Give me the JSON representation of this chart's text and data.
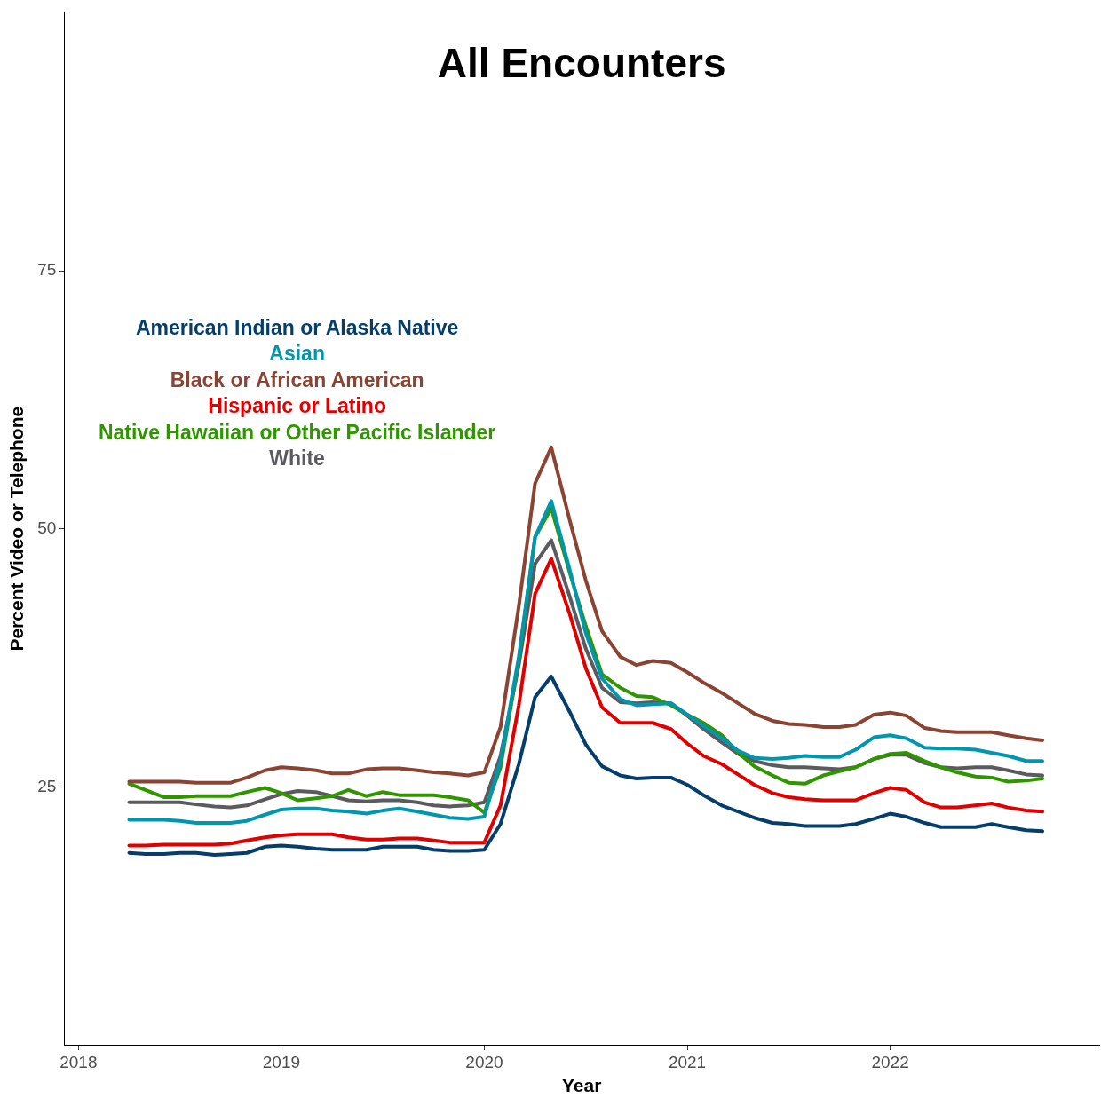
{
  "chart_data": {
    "type": "line",
    "title": "All Encounters",
    "xlabel": "Year",
    "ylabel": "Percent Video or Telephone",
    "x": [
      2018.25,
      2018.33,
      2018.42,
      2018.5,
      2018.58,
      2018.67,
      2018.75,
      2018.83,
      2018.92,
      2019,
      2019.08,
      2019.17,
      2019.25,
      2019.33,
      2019.42,
      2019.5,
      2019.58,
      2019.67,
      2019.75,
      2019.83,
      2019.92,
      2020,
      2020.08,
      2020.17,
      2020.25,
      2020.33,
      2020.42,
      2020.5,
      2020.58,
      2020.67,
      2020.75,
      2020.83,
      2020.92,
      2021,
      2021.08,
      2021.17,
      2021.25,
      2021.33,
      2021.42,
      2021.5,
      2021.58,
      2021.67,
      2021.75,
      2021.83,
      2021.92,
      2022,
      2022.08,
      2022.17,
      2022.25,
      2022.33,
      2022.42,
      2022.5,
      2022.58,
      2022.67,
      2022.75
    ],
    "series": [
      {
        "name": "American Indian or Alaska Native",
        "color": "#063e6b",
        "values": [
          18.6,
          18.5,
          18.5,
          18.6,
          18.6,
          18.4,
          18.5,
          18.6,
          19.2,
          19.3,
          19.2,
          19.0,
          18.9,
          18.9,
          18.9,
          19.2,
          19.2,
          19.2,
          18.9,
          18.8,
          18.8,
          18.9,
          21.4,
          27.2,
          33.7,
          35.7,
          32.3,
          29.1,
          27.0,
          26.1,
          25.8,
          25.9,
          25.9,
          25.2,
          24.2,
          23.2,
          22.6,
          22.0,
          21.5,
          21.4,
          21.2,
          21.2,
          21.2,
          21.4,
          21.9,
          22.4,
          22.1,
          21.5,
          21.1,
          21.1,
          21.1,
          21.4,
          21.1,
          20.8,
          20.7
        ]
      },
      {
        "name": "Asian",
        "color": "#0096b0",
        "values": [
          21.8,
          21.8,
          21.8,
          21.7,
          21.5,
          21.5,
          21.5,
          21.7,
          22.3,
          22.8,
          22.9,
          22.9,
          22.7,
          22.6,
          22.4,
          22.7,
          22.9,
          22.6,
          22.3,
          22.0,
          21.9,
          22.1,
          27.5,
          37.6,
          49.2,
          52.7,
          46.1,
          39.9,
          35.5,
          33.5,
          32.9,
          33.0,
          33.1,
          32.0,
          30.9,
          29.7,
          28.5,
          27.8,
          27.7,
          27.8,
          28.0,
          27.9,
          27.9,
          28.6,
          29.8,
          30.0,
          29.7,
          28.8,
          28.7,
          28.7,
          28.6,
          28.3,
          28.0,
          27.5,
          27.5
        ]
      },
      {
        "name": "Black or African American",
        "color": "#8b4332",
        "values": [
          25.5,
          25.5,
          25.5,
          25.5,
          25.4,
          25.4,
          25.4,
          25.9,
          26.6,
          26.9,
          26.8,
          26.6,
          26.3,
          26.3,
          26.7,
          26.8,
          26.8,
          26.6,
          26.4,
          26.3,
          26.1,
          26.4,
          30.8,
          42.5,
          54.4,
          57.9,
          50.9,
          45.0,
          40.1,
          37.6,
          36.8,
          37.2,
          37.0,
          36.1,
          35.1,
          34.1,
          33.1,
          32.1,
          31.4,
          31.1,
          31.0,
          30.8,
          30.8,
          31.0,
          32.0,
          32.2,
          31.9,
          30.7,
          30.4,
          30.3,
          30.3,
          30.3,
          30.0,
          29.7,
          29.5
        ]
      },
      {
        "name": "Hispanic or Latino",
        "color": "#e00000",
        "values": [
          19.3,
          19.3,
          19.4,
          19.4,
          19.4,
          19.4,
          19.5,
          19.8,
          20.1,
          20.3,
          20.4,
          20.4,
          20.4,
          20.1,
          19.9,
          19.9,
          20.0,
          20.0,
          19.8,
          19.6,
          19.6,
          19.6,
          23.2,
          32.9,
          43.7,
          47.1,
          41.8,
          36.5,
          32.7,
          31.2,
          31.2,
          31.2,
          30.6,
          29.2,
          28.0,
          27.2,
          26.2,
          25.2,
          24.4,
          24.0,
          23.8,
          23.7,
          23.7,
          23.7,
          24.4,
          24.9,
          24.7,
          23.5,
          23.0,
          23.0,
          23.2,
          23.4,
          23.0,
          22.7,
          22.6
        ]
      },
      {
        "name": "Native Hawaiian or Other Pacific Islander",
        "color": "#2f9600",
        "values": [
          25.3,
          24.7,
          24.0,
          24.0,
          24.1,
          24.1,
          24.1,
          24.5,
          24.9,
          24.4,
          23.7,
          23.9,
          24.1,
          24.7,
          24.1,
          24.5,
          24.2,
          24.2,
          24.2,
          24.0,
          23.7,
          22.5,
          26.9,
          37.3,
          49.2,
          52.0,
          45.8,
          40.6,
          35.9,
          34.6,
          33.8,
          33.7,
          32.9,
          32.0,
          31.2,
          30.0,
          28.3,
          27.0,
          26.1,
          25.4,
          25.3,
          26.1,
          26.5,
          26.9,
          27.7,
          28.2,
          28.3,
          27.5,
          26.9,
          26.4,
          26.0,
          25.9,
          25.5,
          25.6,
          25.8
        ]
      },
      {
        "name": "White",
        "color": "#5a5a5f",
        "values": [
          23.5,
          23.5,
          23.5,
          23.5,
          23.3,
          23.1,
          23.0,
          23.2,
          23.8,
          24.3,
          24.6,
          24.5,
          24.1,
          23.7,
          23.6,
          23.7,
          23.7,
          23.5,
          23.2,
          23.1,
          23.2,
          23.5,
          28.0,
          36.8,
          46.6,
          48.9,
          43.5,
          38.4,
          34.6,
          33.2,
          33.1,
          33.2,
          33.1,
          31.9,
          30.6,
          29.3,
          28.2,
          27.5,
          27.1,
          26.9,
          26.9,
          26.8,
          26.7,
          26.9,
          27.7,
          28.1,
          28.1,
          27.3,
          26.9,
          26.8,
          26.9,
          26.9,
          26.6,
          26.2,
          26.1
        ]
      }
    ],
    "xlim": [
      2017.93,
      2023.03
    ],
    "ylim": [
      0,
      100
    ],
    "xticks": [
      2018,
      2019,
      2020,
      2021,
      2022
    ],
    "yticks": [
      25,
      50,
      75
    ],
    "grid": false,
    "legend": "top left",
    "marker": "none",
    "line_style": "solid"
  }
}
